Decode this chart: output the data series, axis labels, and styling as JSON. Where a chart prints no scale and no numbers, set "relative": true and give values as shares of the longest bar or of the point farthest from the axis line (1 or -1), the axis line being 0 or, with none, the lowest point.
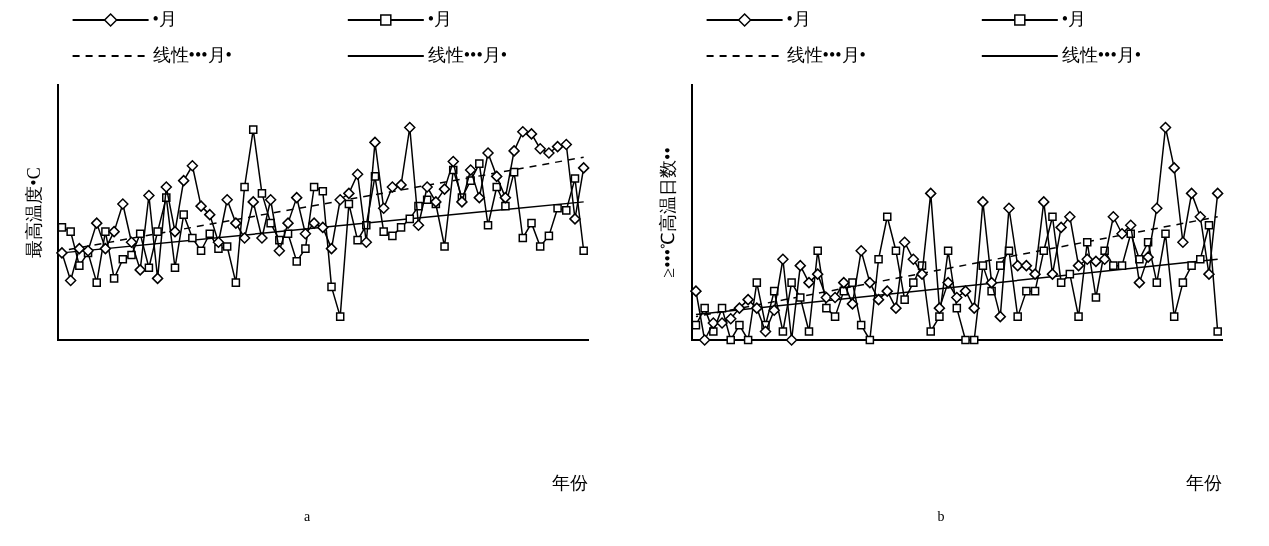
{
  "chart_data": [
    {
      "type": "line",
      "title": "a",
      "xlabel": "年份",
      "ylabel": "最高温度•C",
      "relative": true,
      "legend": "top",
      "grid": false,
      "categories": [
        null,
        null,
        null,
        null,
        null,
        null,
        null,
        null,
        null,
        null,
        null,
        null,
        null,
        null,
        null,
        null,
        null,
        null,
        null,
        null,
        null,
        null,
        null,
        null,
        null,
        null,
        null,
        null,
        null,
        null,
        null,
        null,
        null,
        null,
        null,
        null,
        null,
        null,
        null,
        null,
        null,
        null,
        null,
        null,
        null,
        null,
        null,
        null,
        null,
        null,
        null,
        null,
        null,
        null,
        null,
        null,
        null,
        null,
        null,
        null,
        null
      ],
      "series": [
        {
          "name": "•月",
          "color": "#000000",
          "marker": "diamond",
          "values": [
            0.41,
            0.28,
            0.43,
            0.42,
            0.55,
            0.43,
            0.51,
            0.64,
            0.46,
            0.33,
            0.68,
            0.29,
            0.72,
            0.51,
            0.75,
            0.82,
            0.63,
            0.59,
            0.46,
            0.66,
            0.55,
            0.48,
            0.65,
            0.48,
            0.66,
            0.42,
            0.55,
            0.67,
            0.5,
            0.55,
            0.53,
            0.43,
            0.66,
            0.69,
            0.78,
            0.46,
            0.93,
            0.62,
            0.72,
            0.73,
            1,
            0.54,
            0.72,
            0.65,
            0.71,
            0.84,
            0.65,
            0.8,
            0.67,
            0.88,
            0.77,
            0.67,
            0.89,
            0.98,
            0.97,
            0.9,
            0.88,
            0.91,
            0.92,
            0.57,
            0.81
          ]
        },
        {
          "name": "•月",
          "color": "#000000",
          "marker": "square",
          "values": [
            0.53,
            0.51,
            0.35,
            0.41,
            0.27,
            0.51,
            0.29,
            0.38,
            0.4,
            0.5,
            0.34,
            0.51,
            0.67,
            0.34,
            0.59,
            0.48,
            0.42,
            0.5,
            0.43,
            0.44,
            0.27,
            0.72,
            0.99,
            0.69,
            0.55,
            0.47,
            0.5,
            0.37,
            0.43,
            0.72,
            0.7,
            0.25,
            0.11,
            0.64,
            0.47,
            0.54,
            0.77,
            0.51,
            0.49,
            0.53,
            0.57,
            0.63,
            0.66,
            0.64,
            0.44,
            0.8,
            0.67,
            0.75,
            0.83,
            0.54,
            0.72,
            0.63,
            0.79,
            0.48,
            0.55,
            0.44,
            0.49,
            0.62,
            0.61,
            0.76,
            0.42
          ]
        },
        {
          "name": "线性•••月•",
          "color": "#000000",
          "line_style": "dashed",
          "values": [
            0.42,
            null,
            null,
            null,
            null,
            null,
            null,
            null,
            null,
            null,
            null,
            null,
            null,
            null,
            null,
            null,
            null,
            null,
            null,
            null,
            null,
            null,
            null,
            null,
            null,
            null,
            null,
            null,
            null,
            null,
            null,
            null,
            null,
            null,
            null,
            null,
            null,
            null,
            null,
            null,
            null,
            null,
            null,
            null,
            null,
            null,
            null,
            null,
            null,
            null,
            null,
            null,
            null,
            null,
            null,
            null,
            null,
            null,
            null,
            null,
            0.86
          ]
        },
        {
          "name": "线性•••月•",
          "color": "#000000",
          "line_style": "solid",
          "values": [
            0.41,
            null,
            null,
            null,
            null,
            null,
            null,
            null,
            null,
            null,
            null,
            null,
            null,
            null,
            null,
            null,
            null,
            null,
            null,
            null,
            null,
            null,
            null,
            null,
            null,
            null,
            null,
            null,
            null,
            null,
            null,
            null,
            null,
            null,
            null,
            null,
            null,
            null,
            null,
            null,
            null,
            null,
            null,
            null,
            null,
            null,
            null,
            null,
            null,
            null,
            null,
            null,
            null,
            null,
            null,
            null,
            null,
            null,
            null,
            null,
            0.65
          ]
        }
      ]
    },
    {
      "type": "line",
      "title": "b",
      "xlabel": "年份",
      "ylabel": "≥•••℃高温日数••",
      "relative": true,
      "legend": "top",
      "grid": false,
      "categories": [
        null,
        null,
        null,
        null,
        null,
        null,
        null,
        null,
        null,
        null,
        null,
        null,
        null,
        null,
        null,
        null,
        null,
        null,
        null,
        null,
        null,
        null,
        null,
        null,
        null,
        null,
        null,
        null,
        null,
        null,
        null,
        null,
        null,
        null,
        null,
        null,
        null,
        null,
        null,
        null,
        null,
        null,
        null,
        null,
        null,
        null,
        null,
        null,
        null,
        null,
        null,
        null,
        null,
        null,
        null,
        null,
        null,
        null,
        null,
        null,
        null
      ],
      "series": [
        {
          "name": "•月",
          "color": "#000000",
          "marker": "diamond",
          "values": [
            0.23,
            0,
            0.08,
            0.08,
            0.1,
            0.15,
            0.19,
            0.15,
            0.04,
            0.14,
            0.38,
            0,
            0.35,
            0.27,
            0.31,
            0.2,
            0.2,
            0.27,
            0.17,
            0.42,
            0.27,
            0.19,
            0.23,
            0.15,
            0.46,
            0.38,
            0.31,
            0.69,
            0.15,
            0.27,
            0.2,
            0.23,
            0.15,
            0.65,
            0.27,
            0.11,
            0.62,
            0.35,
            0.35,
            0.31,
            0.65,
            0.31,
            0.53,
            0.58,
            0.35,
            0.38,
            0.37,
            0.38,
            0.58,
            0.5,
            0.54,
            0.27,
            0.39,
            0.62,
            1,
            0.81,
            0.46,
            0.69,
            0.58,
            0.31,
            0.69
          ]
        },
        {
          "name": "•月",
          "color": "#000000",
          "marker": "square",
          "values": [
            0.07,
            0.15,
            0.04,
            0.15,
            0,
            0.07,
            0,
            0.27,
            0.07,
            0.23,
            0.04,
            0.27,
            0.2,
            0.04,
            0.42,
            0.15,
            0.11,
            0.23,
            0.27,
            0.07,
            0,
            0.38,
            0.58,
            0.42,
            0.19,
            0.27,
            0.35,
            0.04,
            0.11,
            0.42,
            0.15,
            0,
            0,
            0.35,
            0.23,
            0.35,
            0.42,
            0.11,
            0.23,
            0.23,
            0.42,
            0.58,
            0.27,
            0.31,
            0.11,
            0.46,
            0.2,
            0.42,
            0.35,
            0.35,
            0.5,
            0.38,
            0.46,
            0.27,
            0.5,
            0.11,
            0.27,
            0.35,
            0.38,
            0.54,
            0.04
          ]
        },
        {
          "name": "线性•••月•",
          "color": "#000000",
          "line_style": "dashed",
          "values": [
            0.11,
            null,
            null,
            null,
            null,
            null,
            null,
            null,
            null,
            null,
            null,
            null,
            null,
            null,
            null,
            null,
            null,
            null,
            null,
            null,
            null,
            null,
            null,
            null,
            null,
            null,
            null,
            null,
            null,
            null,
            null,
            null,
            null,
            null,
            null,
            null,
            null,
            null,
            null,
            null,
            null,
            null,
            null,
            null,
            null,
            null,
            null,
            null,
            null,
            null,
            null,
            null,
            null,
            null,
            null,
            null,
            null,
            null,
            null,
            null,
            0.58
          ]
        },
        {
          "name": "线性•••月•",
          "color": "#000000",
          "line_style": "solid",
          "values": [
            0.12,
            null,
            null,
            null,
            null,
            null,
            null,
            null,
            null,
            null,
            null,
            null,
            null,
            null,
            null,
            null,
            null,
            null,
            null,
            null,
            null,
            null,
            null,
            null,
            null,
            null,
            null,
            null,
            null,
            null,
            null,
            null,
            null,
            null,
            null,
            null,
            null,
            null,
            null,
            null,
            null,
            null,
            null,
            null,
            null,
            null,
            null,
            null,
            null,
            null,
            null,
            null,
            null,
            null,
            null,
            null,
            null,
            null,
            null,
            null,
            0.38
          ]
        }
      ]
    }
  ]
}
